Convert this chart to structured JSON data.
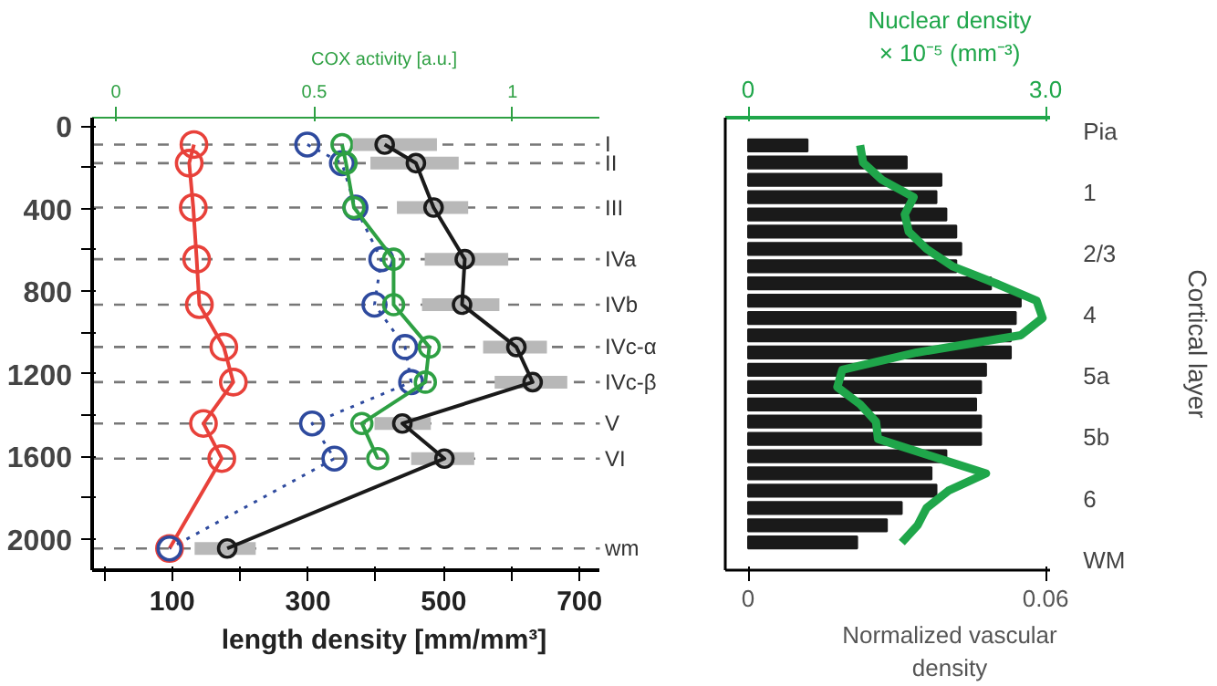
{
  "chart_data": [
    {
      "type": "line",
      "orientation": "horizontal",
      "xlabel": "length density [mm/mm³]",
      "x2label": "COX activity [a.u.]",
      "xlim": [
        -18,
        730
      ],
      "xticks": [
        {
          "value": 0,
          "label": null
        },
        100,
        {
          "value": 200,
          "label": null
        },
        300,
        {
          "value": 400,
          "label": null
        },
        500,
        {
          "value": 600,
          "label": null
        },
        700
      ],
      "x2lim": [
        -0.06,
        1.22
      ],
      "x2ticks": [
        0,
        0.5,
        1
      ],
      "ylim": [
        2150,
        -40
      ],
      "yticks": [
        0,
        {
          "value": 200,
          "label": null
        },
        400,
        {
          "value": 600,
          "label": null
        },
        800,
        {
          "value": 1000,
          "label": null
        },
        1200,
        {
          "value": 1400,
          "label": null
        },
        1600,
        {
          "value": 1800,
          "label": null
        },
        2000
      ],
      "x": [
        90,
        180,
        395,
        645,
        865,
        1070,
        1240,
        1440,
        1610,
        2045
      ],
      "marker": "circle",
      "grid": false,
      "series": [
        {
          "color": "#e8413a",
          "values": [
            132,
            125,
            131,
            136,
            140,
            176,
            190,
            146,
            173,
            96
          ]
        },
        {
          "color": "#2e4a9e",
          "line_style": "dotted",
          "values": [
            299,
            350,
            370,
            408,
            398,
            443,
            452,
            306,
            339,
            96
          ]
        },
        {
          "color": "#2ea043",
          "axis": "x2",
          "values": [
            0.57,
            0.58,
            0.6,
            0.7,
            0.7,
            0.79,
            0.78,
            0.62,
            0.66,
            null
          ]
        },
        {
          "color": "#1a1a1a",
          "values": [
            413,
            459,
            485,
            531,
            527,
            607,
            631,
            439,
            501,
            181
          ],
          "errors": [
            [
              366,
              490
            ],
            [
              392,
              522
            ],
            [
              431,
              536
            ],
            [
              472,
              595
            ],
            [
              468,
              582
            ],
            [
              558,
              652
            ],
            [
              575,
              682
            ],
            [
              398,
              481
            ],
            [
              452,
              545
            ],
            [
              133,
              223
            ]
          ]
        }
      ],
      "ref_lines": [
        {
          "axis": "y",
          "value": 90,
          "label": "I"
        },
        {
          "axis": "y",
          "value": 180,
          "label": "II"
        },
        {
          "axis": "y",
          "value": 395,
          "label": "III"
        },
        {
          "axis": "y",
          "value": 645,
          "label": "IVa"
        },
        {
          "axis": "y",
          "value": 865,
          "label": "IVb"
        },
        {
          "axis": "y",
          "value": 1070,
          "label": "IVc-α"
        },
        {
          "axis": "y",
          "value": 1240,
          "label": "IVc-β"
        },
        {
          "axis": "y",
          "value": 1440,
          "label": "V"
        },
        {
          "axis": "y",
          "value": 1610,
          "label": "VI"
        },
        {
          "axis": "y",
          "value": 2045,
          "label": "wm"
        }
      ]
    },
    {
      "type": "bar",
      "orientation": "horizontal",
      "xlabel": "Normalized vascular\ndensity",
      "x2label": "Nuclear density\n× 10⁻⁵ (mm⁻³)",
      "xlim": [
        -0.0046,
        0.061
      ],
      "xticks": [
        0,
        0.06
      ],
      "x2lim": [
        -0.23,
        3.05
      ],
      "x2ticks": [
        0,
        {
          "value": 3,
          "label": "3.0"
        }
      ],
      "ylabel": "Cortical layer",
      "tick_labels": "x",
      "grid": false,
      "categories": [
        null,
        null,
        null,
        null,
        null,
        null,
        null,
        null,
        null,
        null,
        null,
        null,
        null,
        null,
        null,
        null,
        null,
        null,
        null,
        null,
        null,
        null,
        null,
        null
      ],
      "series": [
        {
          "type": "bar",
          "color": "#1a1a1a",
          "values": [
            0.012,
            0.032,
            0.039,
            0.038,
            0.04,
            0.042,
            0.043,
            0.042,
            0.049,
            0.055,
            0.054,
            0.053,
            0.053,
            0.048,
            0.047,
            0.046,
            0.047,
            0.047,
            0.04,
            0.037,
            0.038,
            0.031,
            0.028,
            0.022
          ]
        },
        {
          "type": "line",
          "axis": "x2",
          "color": "#1fa64a",
          "values": [
            1.13,
            1.16,
            1.35,
            1.67,
            1.58,
            1.62,
            1.8,
            2.06,
            2.5,
            2.91,
            2.97,
            2.75,
            1.7,
            0.95,
            0.9,
            1.13,
            1.29,
            1.31,
            1.85,
            2.4,
            2.02,
            1.8,
            1.71,
            1.55
          ]
        }
      ],
      "annotations": [
        "Pia",
        "1",
        "2/3",
        "4",
        "5a",
        "5b",
        "6",
        "WM"
      ]
    }
  ]
}
